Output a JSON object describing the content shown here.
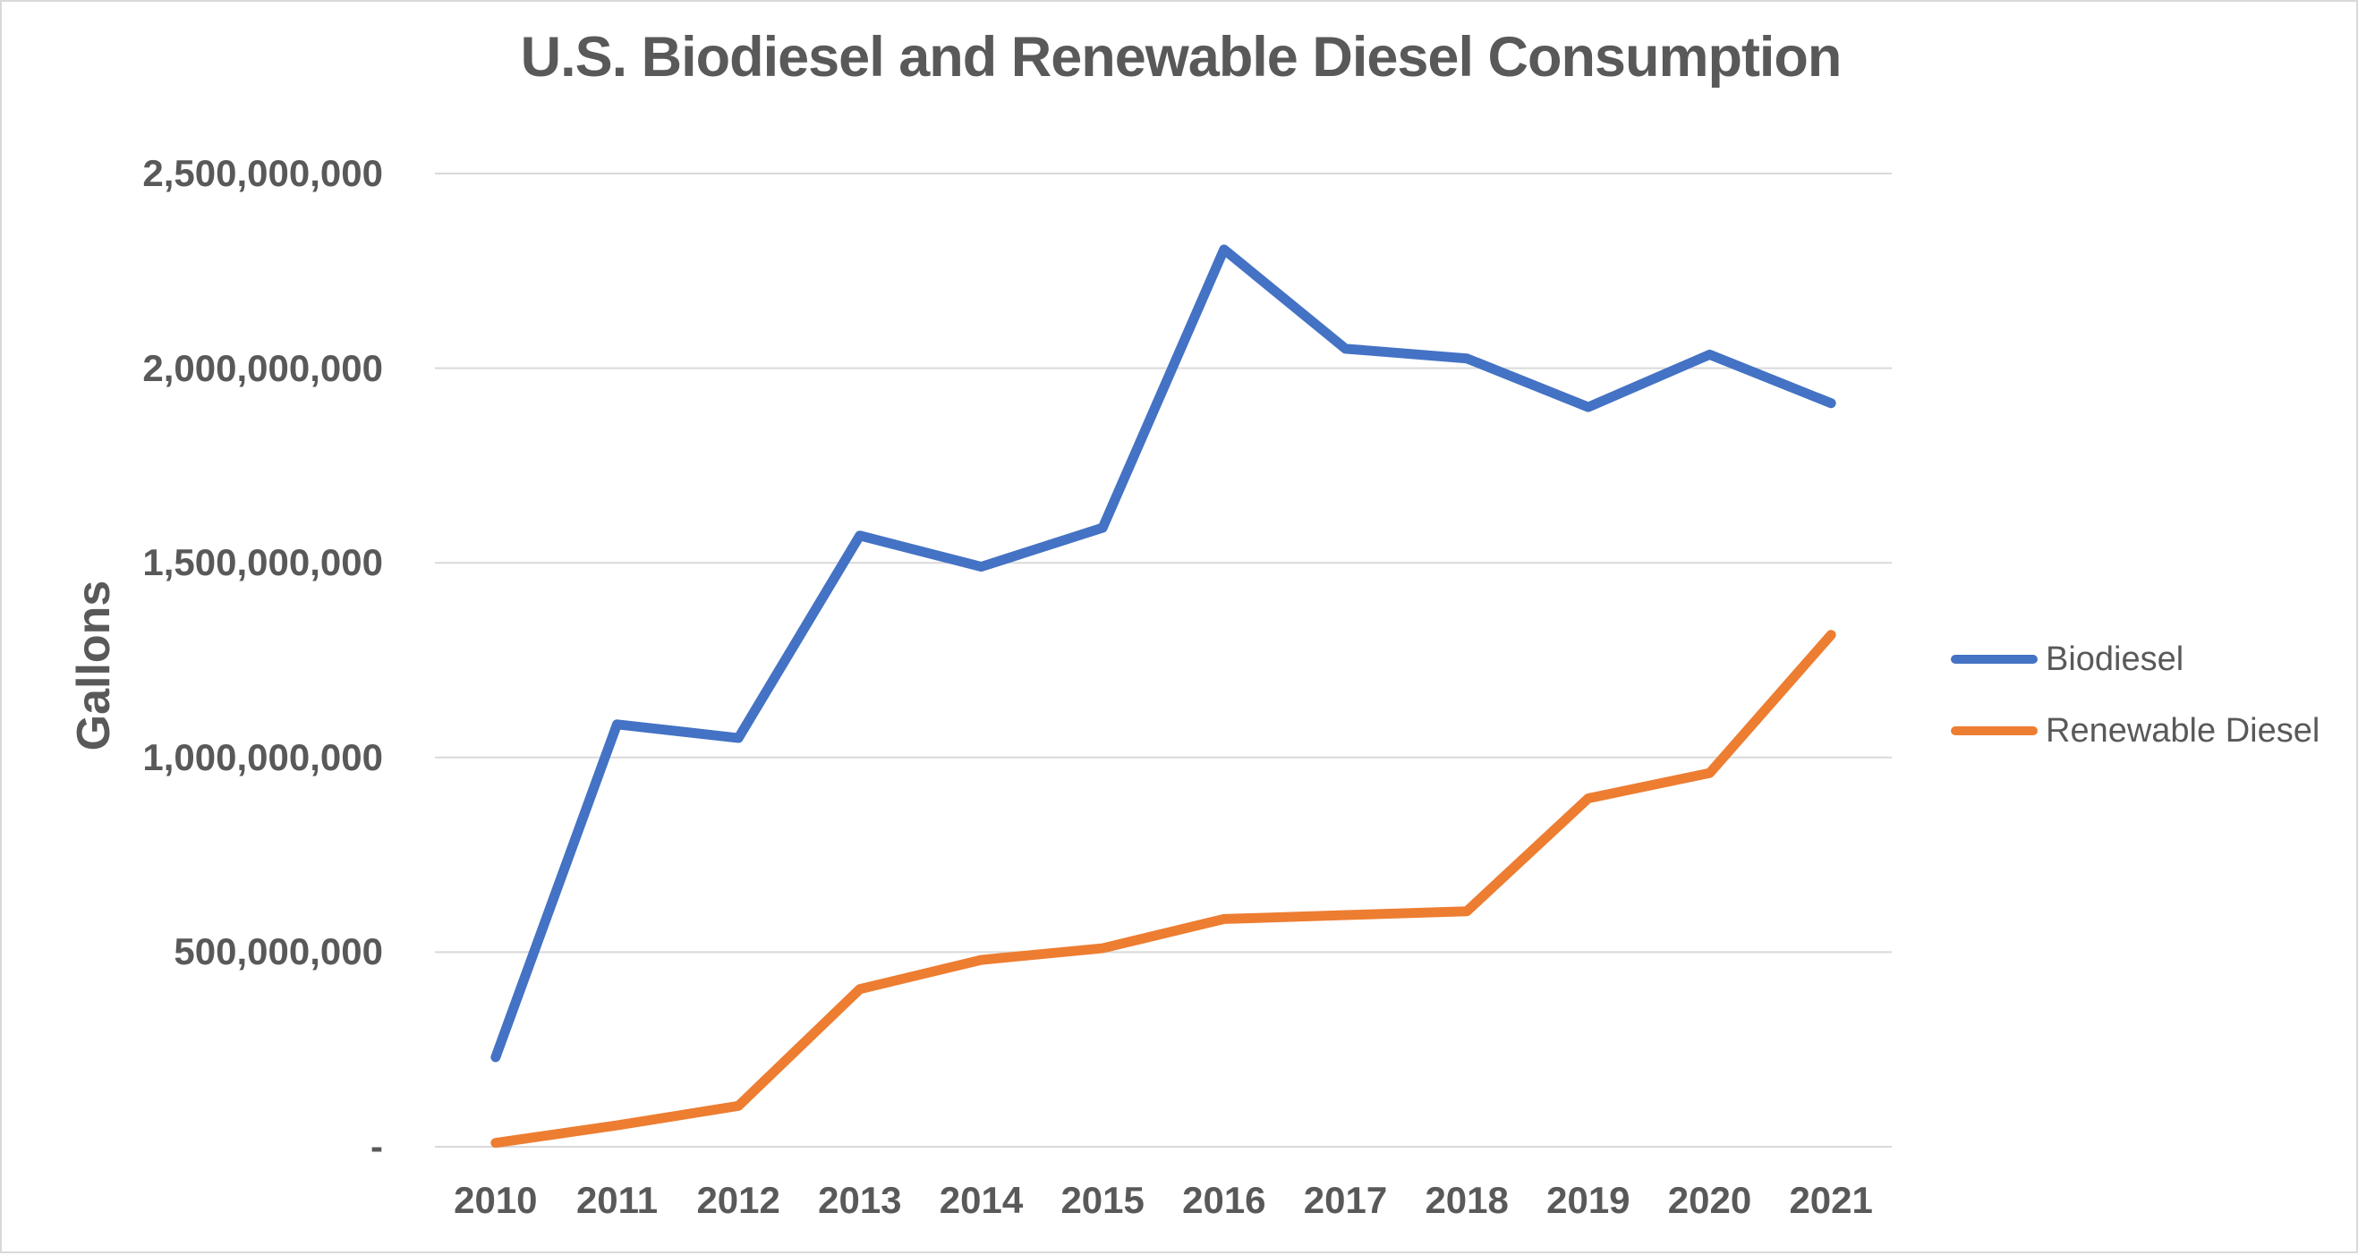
{
  "window": {
    "background": "#ffffff",
    "border_color": "#d9d9d9",
    "text_color": "#595959",
    "gridline_color": "#d9d9d9"
  },
  "chart_data": {
    "type": "line",
    "title": "U.S. Biodiesel and Renewable Diesel Consumption",
    "xlabel": "",
    "ylabel": "Gallons",
    "categories": [
      "2010",
      "2011",
      "2012",
      "2013",
      "2014",
      "2015",
      "2016",
      "2017",
      "2018",
      "2019",
      "2020",
      "2021"
    ],
    "series": [
      {
        "name": "Biodiesel",
        "color": "#4472C4",
        "values": [
          230000000,
          1085000000,
          1050000000,
          1570000000,
          1490000000,
          1590000000,
          2305000000,
          2050000000,
          2025000000,
          1900000000,
          2035000000,
          1910000000
        ]
      },
      {
        "name": "Renewable Diesel",
        "color": "#ED7D31",
        "values": [
          10000000,
          55000000,
          105000000,
          405000000,
          480000000,
          510000000,
          585000000,
          595000000,
          605000000,
          895000000,
          960000000,
          1315000000
        ]
      }
    ],
    "ylim": [
      0,
      2500000000
    ],
    "yticks": {
      "values": [
        2500000000,
        2000000000,
        1500000000,
        1000000000,
        500000000,
        0
      ],
      "labels": [
        "2,500,000,000",
        "2,000,000,000",
        "1,500,000,000",
        "1,000,000,000",
        "500,000,000",
        "-"
      ]
    },
    "grid": "horizontal",
    "legend_position": "right"
  }
}
